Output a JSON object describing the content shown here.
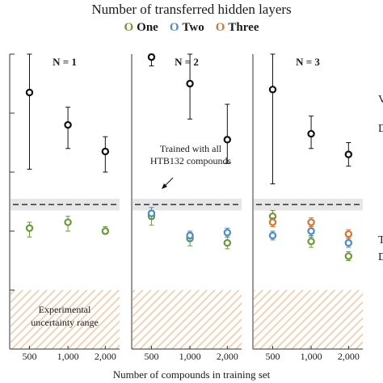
{
  "chart_data": {
    "type": "scatter",
    "title": "Number of transferred hidden layers",
    "xlabel": "Number of compounds in training set",
    "ylabel": "",
    "legend": {
      "placement": "top",
      "marker": "O",
      "entries": [
        {
          "name": "One",
          "color": "#6a9a3a"
        },
        {
          "name": "Two",
          "color": "#4a8cc4"
        },
        {
          "name": "Three",
          "color": "#d9742f"
        }
      ]
    },
    "x_tick_labels": [
      "500",
      "1,000",
      "2,000"
    ],
    "ylim": [
      0,
      10
    ],
    "grid": false,
    "colors": {
      "baseline": "#111111",
      "band": "#e6e6e6",
      "hatch": "#f2c9a6"
    },
    "annotations": {
      "reference_line": "Trained with all HTB132 compounds",
      "uncertainty_region": "Experimental uncertainty range",
      "right_edge_labels": [
        "V",
        "D",
        "T",
        "D"
      ]
    },
    "baseline": {
      "value": 4.9,
      "band_low": 4.7,
      "band_high": 5.1
    },
    "uncertainty_range": {
      "low": 0,
      "high": 2.0
    },
    "panels": [
      {
        "title": "N = 1",
        "series": [
          {
            "name": "baseline",
            "color": "#111111",
            "points": [
              {
                "x": "500",
                "y": 8.7,
                "err_low": 6.1,
                "err_high": 10.0
              },
              {
                "x": "1,000",
                "y": 7.6,
                "err_low": 6.8,
                "err_high": 8.2
              },
              {
                "x": "2,000",
                "y": 6.7,
                "err_low": 6.0,
                "err_high": 7.2
              }
            ]
          },
          {
            "name": "One",
            "color": "#6a9a3a",
            "points": [
              {
                "x": "500",
                "y": 4.1,
                "err_low": 3.8,
                "err_high": 4.3
              },
              {
                "x": "1,000",
                "y": 4.3,
                "err_low": 4.0,
                "err_high": 4.5
              },
              {
                "x": "2,000",
                "y": 4.0,
                "err_low": 3.9,
                "err_high": 4.15
              }
            ]
          }
        ]
      },
      {
        "title": "N = 2",
        "series": [
          {
            "name": "baseline",
            "color": "#111111",
            "points": [
              {
                "x": "500",
                "y": 9.9,
                "err_low": 9.6,
                "err_high": 10.2
              },
              {
                "x": "1,000",
                "y": 9.0,
                "err_low": 7.8,
                "err_high": 10.0
              },
              {
                "x": "2,000",
                "y": 7.1,
                "err_low": 6.3,
                "err_high": 8.3
              }
            ]
          },
          {
            "name": "One",
            "color": "#6a9a3a",
            "points": [
              {
                "x": "500",
                "y": 4.5,
                "err_low": 4.2,
                "err_high": 4.7
              },
              {
                "x": "1,000",
                "y": 3.75,
                "err_low": 3.5,
                "err_high": 3.95
              },
              {
                "x": "2,000",
                "y": 3.6,
                "err_low": 3.4,
                "err_high": 3.8
              }
            ]
          },
          {
            "name": "Two",
            "color": "#4a8cc4",
            "points": [
              {
                "x": "500",
                "y": 4.6,
                "err_low": 4.4,
                "err_high": 4.8
              },
              {
                "x": "1,000",
                "y": 3.85,
                "err_low": 3.65,
                "err_high": 4.0
              },
              {
                "x": "2,000",
                "y": 3.95,
                "err_low": 3.8,
                "err_high": 4.1
              }
            ]
          }
        ]
      },
      {
        "title": "N = 3",
        "series": [
          {
            "name": "baseline",
            "color": "#111111",
            "points": [
              {
                "x": "500",
                "y": 8.8,
                "err_low": 5.6,
                "err_high": 10.0
              },
              {
                "x": "1,000",
                "y": 7.3,
                "err_low": 6.8,
                "err_high": 7.9
              },
              {
                "x": "2,000",
                "y": 6.6,
                "err_low": 6.2,
                "err_high": 7.0
              }
            ]
          },
          {
            "name": "One",
            "color": "#6a9a3a",
            "points": [
              {
                "x": "500",
                "y": 4.5,
                "err_low": 4.3,
                "err_high": 4.7
              },
              {
                "x": "1,000",
                "y": 3.65,
                "err_low": 3.45,
                "err_high": 3.85
              },
              {
                "x": "2,000",
                "y": 3.15,
                "err_low": 3.0,
                "err_high": 3.3
              }
            ]
          },
          {
            "name": "Two",
            "color": "#4a8cc4",
            "points": [
              {
                "x": "500",
                "y": 3.85,
                "err_low": 3.7,
                "err_high": 4.0
              },
              {
                "x": "1,000",
                "y": 4.0,
                "err_low": 3.8,
                "err_high": 4.2
              },
              {
                "x": "2,000",
                "y": 3.6,
                "err_low": 3.45,
                "err_high": 3.75
              }
            ]
          },
          {
            "name": "Three",
            "color": "#d9742f",
            "points": [
              {
                "x": "500",
                "y": 4.3,
                "err_low": 4.15,
                "err_high": 4.45
              },
              {
                "x": "1,000",
                "y": 4.3,
                "err_low": 4.15,
                "err_high": 4.45
              },
              {
                "x": "2,000",
                "y": 3.9,
                "err_low": 3.75,
                "err_high": 4.05
              }
            ]
          }
        ]
      }
    ]
  }
}
